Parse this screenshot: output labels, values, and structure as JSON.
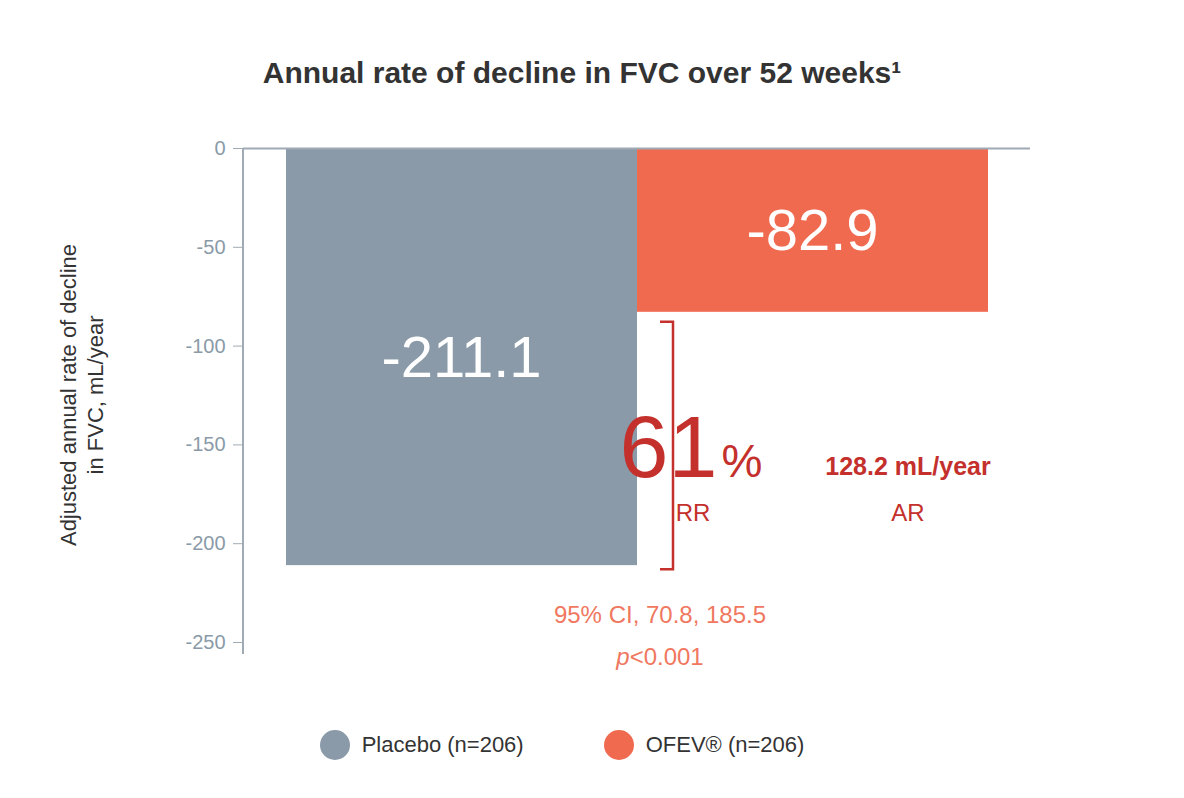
{
  "chart_data": {
    "type": "bar",
    "title": "Annual rate of decline in FVC over 52 weeks¹",
    "y_label": "Adjusted annual rate of decline\nin FVC, mL/year",
    "categories": [
      "Placebo (n=206)",
      "OFEV® (n=206)"
    ],
    "values": [
      -211.1,
      -82.9
    ],
    "colors": [
      "#8a9aa8",
      "#f06a50"
    ],
    "ylim": [
      -250,
      0
    ],
    "yticks": [
      0,
      -50,
      -100,
      -150,
      -200,
      -250
    ],
    "grid": false,
    "data_labels": true,
    "tick_labels": "y",
    "legend": "bottom",
    "annotations": {
      "rr": "61%",
      "rr_label": "RR",
      "ar": "128.2 mL/year",
      "ar_label": "AR",
      "ci": "95% CI, 70.8, 185.5",
      "p": "p<0.001"
    }
  }
}
